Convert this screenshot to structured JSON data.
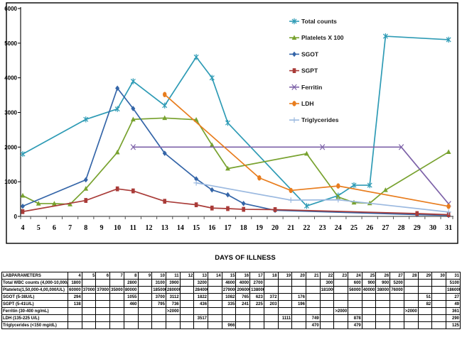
{
  "chart_data": {
    "type": "line",
    "title": "",
    "xlabel": "DAYS OF ILLNESS",
    "ylabel": "",
    "ylim": [
      0,
      6000
    ],
    "y_ticks": [
      0,
      1000,
      2000,
      3000,
      4000,
      5000,
      6000
    ],
    "grid": false,
    "legend_position": "upper center, no border",
    "categories": [
      4,
      5,
      6,
      7,
      8,
      9,
      10,
      11,
      12,
      13,
      14,
      15,
      16,
      17,
      18,
      19,
      20,
      21,
      22,
      23,
      24,
      25,
      26,
      27,
      28,
      29,
      30,
      31
    ],
    "series": [
      {
        "name": "Total counts",
        "color": "#2E9BB5",
        "marker": "star",
        "values": [
          1800,
          null,
          null,
          null,
          2800,
          null,
          3100,
          3900,
          null,
          3200,
          null,
          4600,
          4000,
          2700,
          null,
          null,
          null,
          null,
          300,
          null,
          600,
          900,
          900,
          5200,
          null,
          null,
          null,
          5100
        ]
      },
      {
        "name": "Platelets X 100",
        "color": "#78A22F",
        "marker": "triangle",
        "values": [
          600,
          370,
          370,
          350,
          800,
          null,
          1850,
          2800,
          null,
          2840,
          null,
          2790,
          2060,
          1380,
          null,
          null,
          null,
          null,
          1810,
          null,
          560,
          400,
          380,
          760,
          null,
          null,
          null,
          1860
        ]
      },
      {
        "name": "SGOT",
        "color": "#3465A8",
        "marker": "diamond",
        "values": [
          294,
          null,
          null,
          null,
          1055,
          null,
          3700,
          3112,
          null,
          1822,
          null,
          1082,
          765,
          623,
          372,
          null,
          176,
          null,
          null,
          null,
          null,
          null,
          null,
          null,
          null,
          51,
          null,
          27
        ]
      },
      {
        "name": "SGPT",
        "color": "#A93B38",
        "marker": "square",
        "values": [
          138,
          null,
          null,
          null,
          460,
          null,
          795,
          736,
          null,
          436,
          null,
          335,
          241,
          225,
          203,
          null,
          196,
          null,
          null,
          null,
          null,
          null,
          null,
          null,
          null,
          82,
          null,
          49
        ]
      },
      {
        "name": "Ferritin",
        "color": "#7D62A8",
        "marker": "x",
        "values": [
          null,
          null,
          null,
          null,
          null,
          null,
          null,
          2000,
          null,
          null,
          null,
          null,
          null,
          null,
          null,
          null,
          null,
          null,
          null,
          2000,
          null,
          null,
          null,
          null,
          2000,
          null,
          null,
          361
        ]
      },
      {
        "name": "LDH",
        "color": "#E87D1E",
        "marker": "circle",
        "values": [
          null,
          null,
          null,
          null,
          null,
          null,
          null,
          null,
          null,
          3517,
          null,
          null,
          null,
          null,
          null,
          1111,
          null,
          749,
          null,
          null,
          878,
          null,
          null,
          null,
          null,
          null,
          null,
          290
        ]
      },
      {
        "name": "Triglycerides",
        "color": "#9BB9E0",
        "marker": "plus",
        "values": [
          null,
          null,
          null,
          null,
          null,
          null,
          null,
          null,
          null,
          null,
          null,
          966,
          null,
          null,
          null,
          null,
          null,
          470,
          null,
          null,
          479,
          null,
          null,
          null,
          null,
          null,
          null,
          125
        ]
      }
    ]
  },
  "table": {
    "header_label": "LABPARAMETERS",
    "day_columns": [
      "4",
      "5",
      "6",
      "7",
      "8",
      "9",
      "10",
      "11",
      "12",
      "13",
      "14",
      "15",
      "16",
      "17",
      "18",
      "19",
      "20",
      "21",
      "22",
      "23",
      "24",
      "25",
      "26",
      "27",
      "28",
      "29",
      "30",
      "31"
    ],
    "rows": [
      {
        "label": "Total WBC counts (4,000-10,000/UL)",
        "values": [
          "1800",
          "",
          "",
          "",
          "2800",
          "",
          "3100",
          "3900",
          "",
          "3200",
          "",
          "4600",
          "4000",
          "2700",
          "",
          "",
          "",
          "",
          "300",
          "",
          "600",
          "900",
          "900",
          "5200",
          "",
          "",
          "",
          "5100"
        ]
      },
      {
        "label": "Platelets(1,50,000-4,00,000/UL)",
        "values": [
          "60000",
          "37000",
          "37000",
          "35000",
          "80000",
          "",
          "185000",
          "280000",
          "",
          "284000",
          "",
          "279000",
          "206000",
          "138000",
          "",
          "",
          "",
          "",
          "181000",
          "",
          "56000",
          "40000",
          "38000",
          "76000",
          "",
          "",
          "",
          "186000"
        ]
      },
      {
        "label": "SGOT (5-38U/L)",
        "values": [
          "294",
          "",
          "",
          "",
          "1055",
          "",
          "3700",
          "3112",
          "",
          "1822",
          "",
          "1082",
          "765",
          "623",
          "372",
          "",
          "176",
          "",
          "",
          "",
          "",
          "",
          "",
          "",
          "",
          "51",
          "",
          "27"
        ]
      },
      {
        "label": "SGPT (5-41U/L)",
        "values": [
          "138",
          "",
          "",
          "",
          "460",
          "",
          "795",
          "736",
          "",
          "436",
          "",
          "335",
          "241",
          "225",
          "203",
          "",
          "196",
          "",
          "",
          "",
          "",
          "",
          "",
          "",
          "",
          "82",
          "",
          "49"
        ]
      },
      {
        "label": "Ferritin (30-400 ng/mL)",
        "values": [
          "",
          "",
          "",
          "",
          "",
          "",
          "",
          ">2000",
          "",
          "",
          "",
          "",
          "",
          "",
          "",
          "",
          "",
          "",
          "",
          ">2000",
          "",
          "",
          "",
          "",
          ">2000",
          "",
          "",
          "361"
        ]
      },
      {
        "label": "LDH (135-225 U/L)",
        "values": [
          "",
          "",
          "",
          "",
          "",
          "",
          "",
          "",
          "",
          "3517",
          "",
          "",
          "",
          "",
          "",
          "1111",
          "",
          "749",
          "",
          "",
          "878",
          "",
          "",
          "",
          "",
          "",
          "",
          "290"
        ]
      },
      {
        "label": "Triglycerides (<150 mg/dL)",
        "values": [
          "",
          "",
          "",
          "",
          "",
          "",
          "",
          "",
          "",
          "",
          "",
          "966",
          "",
          "",
          "",
          "",
          "",
          "470",
          "",
          "",
          "479",
          "",
          "",
          "",
          "",
          "",
          "",
          "125"
        ]
      }
    ]
  }
}
